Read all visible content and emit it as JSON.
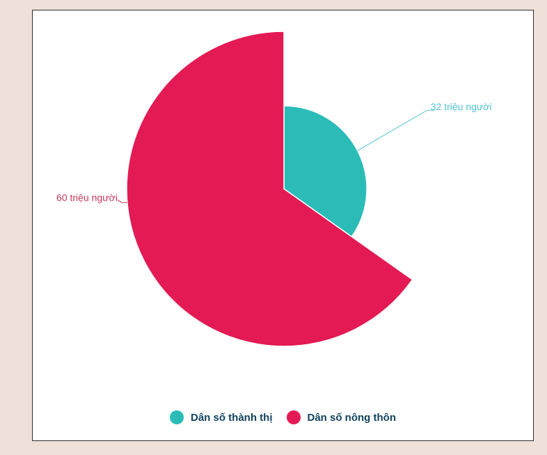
{
  "chart_data": {
    "type": "pie",
    "slices": [
      {
        "label": "Dân số thành thị",
        "value": 32,
        "value_label": "32 triệu người",
        "color": "#2bbcb8",
        "relative_radius": 0.527
      },
      {
        "label": "Dân số nông thôn",
        "value": 60,
        "value_label": "60 triệu người",
        "color": "#e31a54",
        "relative_radius": 1.0
      }
    ],
    "start_angle_deg": 0,
    "direction": "clockwise",
    "legend_placement": "bottom-center"
  },
  "colors": {
    "label_urban": "#4fc3d6",
    "label_rural": "#c73a5c",
    "legend_text": "#12425e"
  }
}
